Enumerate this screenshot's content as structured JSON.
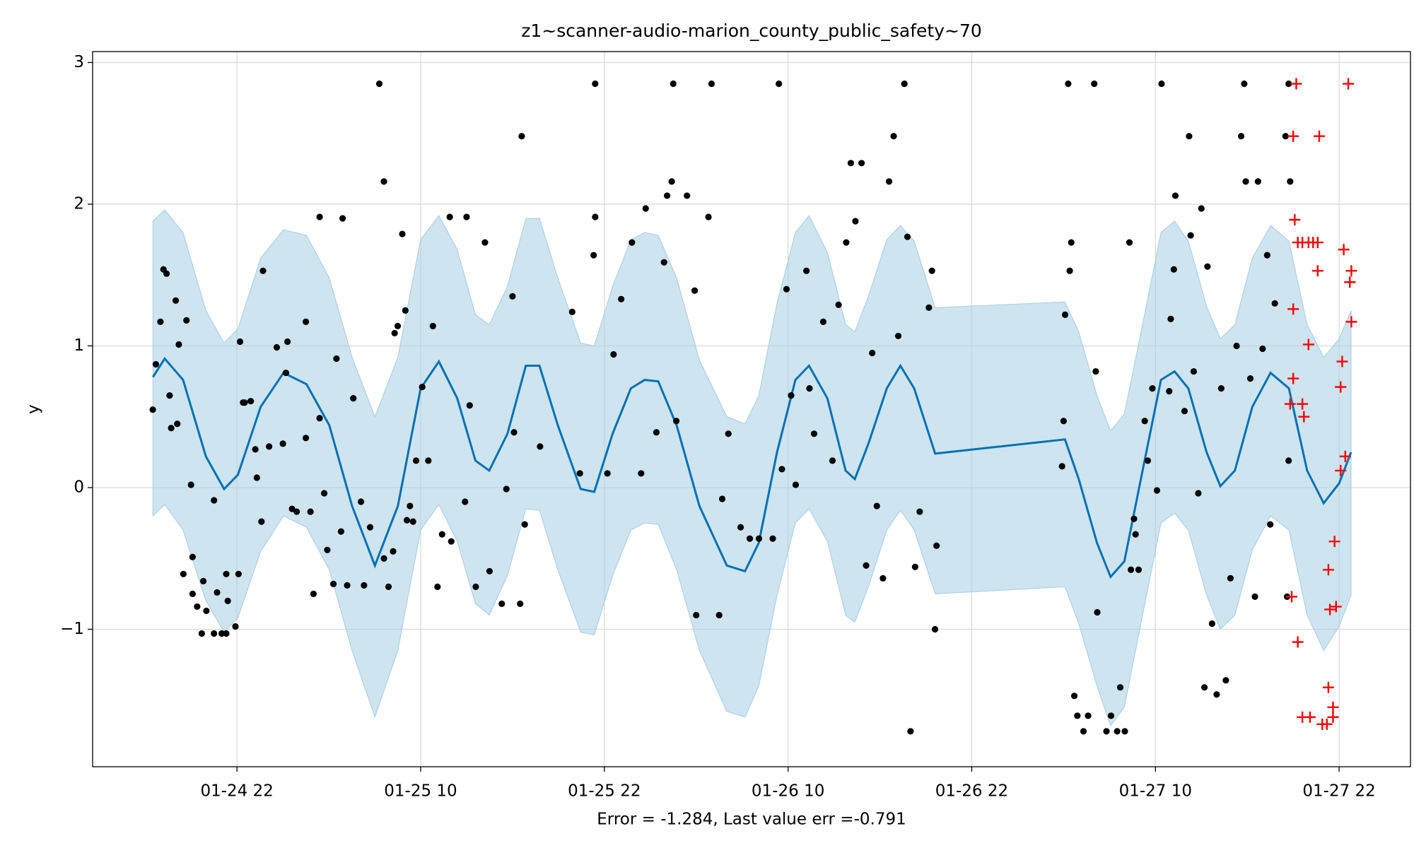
{
  "chart_data": {
    "type": "forecast",
    "title": "z1~scanner-audio-marion_county_public_safety~70",
    "xlabel": "Error = -1.284, Last value err =-0.791",
    "ylabel": "y",
    "xlim": [
      12.57,
      98.66
    ],
    "ylim": [
      -1.97,
      3.077
    ],
    "xticks": [
      {
        "value": 22,
        "label": "01-24 22"
      },
      {
        "value": 34,
        "label": "01-25 10"
      },
      {
        "value": 46,
        "label": "01-25 22"
      },
      {
        "value": 58,
        "label": "01-26 10"
      },
      {
        "value": 70,
        "label": "01-26 22"
      },
      {
        "value": 82,
        "label": "01-27 10"
      },
      {
        "value": 94,
        "label": "01-27 22"
      }
    ],
    "yticks": [
      {
        "value": -1,
        "label": "−1"
      },
      0,
      1,
      2,
      3
    ],
    "grid": true,
    "series": [
      {
        "kind": "line",
        "color": "#0072b2",
        "band_color": "#a6cde2",
        "x": [
          16.51,
          17.28,
          18.48,
          19.97,
          21.16,
          22.06,
          23.55,
          25.04,
          26.54,
          28.03,
          29.52,
          31.01,
          32.51,
          34.0,
          35.19,
          36.39,
          37.58,
          38.48,
          39.67,
          40.87,
          41.76,
          42.96,
          44.45,
          45.34,
          46.54,
          47.73,
          48.63,
          49.52,
          50.72,
          52.21,
          54.0,
          55.19,
          56.09,
          57.28,
          58.48,
          59.37,
          60.57,
          61.76,
          62.36,
          63.25,
          64.45,
          65.34,
          66.24,
          67.61,
          76.09,
          76.99,
          78.18,
          79.07,
          79.97,
          81.16,
          82.36,
          83.25,
          84.15,
          85.34,
          86.24,
          87.19,
          88.33,
          89.52,
          90.72,
          91.91,
          92.99,
          94.0,
          94.78
        ],
        "values": [
          0.78,
          0.91,
          0.76,
          0.22,
          -0.01,
          0.09,
          0.57,
          0.81,
          0.73,
          0.44,
          -0.13,
          -0.55,
          -0.13,
          0.7,
          0.89,
          0.63,
          0.19,
          0.12,
          0.38,
          0.86,
          0.86,
          0.44,
          -0.01,
          -0.03,
          0.38,
          0.7,
          0.76,
          0.75,
          0.44,
          -0.13,
          -0.55,
          -0.59,
          -0.39,
          0.25,
          0.76,
          0.86,
          0.63,
          0.12,
          0.06,
          0.31,
          0.7,
          0.86,
          0.7,
          0.24,
          0.34,
          0.06,
          -0.39,
          -0.63,
          -0.52,
          0.12,
          0.76,
          0.82,
          0.7,
          0.25,
          0.01,
          0.12,
          0.57,
          0.81,
          0.7,
          0.12,
          -0.11,
          0.03,
          0.25
        ],
        "upper": [
          1.88,
          1.96,
          1.8,
          1.25,
          1.02,
          1.12,
          1.62,
          1.82,
          1.78,
          1.48,
          0.92,
          0.5,
          0.92,
          1.75,
          1.92,
          1.68,
          1.22,
          1.15,
          1.42,
          1.9,
          1.9,
          1.48,
          1.02,
          1.0,
          1.42,
          1.75,
          1.8,
          1.78,
          1.48,
          0.9,
          0.5,
          0.45,
          0.65,
          1.3,
          1.8,
          1.92,
          1.66,
          1.15,
          1.1,
          1.35,
          1.75,
          1.85,
          1.74,
          1.27,
          1.31,
          1.1,
          0.65,
          0.4,
          0.52,
          1.15,
          1.8,
          1.88,
          1.74,
          1.28,
          1.05,
          1.15,
          1.62,
          1.85,
          1.74,
          1.15,
          0.92,
          1.05,
          1.25
        ],
        "lower": [
          -0.2,
          -0.12,
          -0.3,
          -0.8,
          -1.02,
          -0.92,
          -0.45,
          -0.2,
          -0.28,
          -0.58,
          -1.15,
          -1.62,
          -1.15,
          -0.3,
          -0.12,
          -0.38,
          -0.82,
          -0.9,
          -0.62,
          -0.15,
          -0.16,
          -0.58,
          -1.02,
          -1.04,
          -0.62,
          -0.3,
          -0.25,
          -0.26,
          -0.58,
          -1.15,
          -1.58,
          -1.62,
          -1.4,
          -0.76,
          -0.25,
          -0.15,
          -0.38,
          -0.9,
          -0.95,
          -0.7,
          -0.3,
          -0.16,
          -0.3,
          -0.75,
          -0.7,
          -0.96,
          -1.4,
          -1.68,
          -1.55,
          -0.9,
          -0.25,
          -0.18,
          -0.3,
          -0.76,
          -1.0,
          -0.9,
          -0.44,
          -0.2,
          -0.3,
          -0.9,
          -1.15,
          -0.98,
          -0.76
        ]
      },
      {
        "kind": "scatter",
        "marker": "dot",
        "color": "#000000",
        "x": [
          16.5,
          16.7,
          17.0,
          17.2,
          17.4,
          17.6,
          17.7,
          18.0,
          18.1,
          18.2,
          18.5,
          18.7,
          19.0,
          19.1,
          19.1,
          19.4,
          19.7,
          19.8,
          20.0,
          20.5,
          20.5,
          20.7,
          21.0,
          21.3,
          21.3,
          21.4,
          21.9,
          22.1,
          22.2,
          22.4,
          22.5,
          22.9,
          23.2,
          23.3,
          23.6,
          23.7,
          24.1,
          24.6,
          25.0,
          25.2,
          25.3,
          25.6,
          25.9,
          26.5,
          26.5,
          26.8,
          27.0,
          27.4,
          27.4,
          27.7,
          27.9,
          28.3,
          28.5,
          28.8,
          28.9,
          29.2,
          29.6,
          30.1,
          30.3,
          30.7,
          31.3,
          31.6,
          31.6,
          31.9,
          32.2,
          32.3,
          32.5,
          32.8,
          33.0,
          33.1,
          33.3,
          33.5,
          33.7,
          34.1,
          34.5,
          34.8,
          35.1,
          35.4,
          35.9,
          36.0,
          36.9,
          37.0,
          37.2,
          37.6,
          38.2,
          38.5,
          39.3,
          39.6,
          40.0,
          40.1,
          40.5,
          40.6,
          40.8,
          41.8,
          43.9,
          44.4,
          45.4,
          45.4,
          45.3,
          46.2,
          46.6,
          47.1,
          47.8,
          48.4,
          48.7,
          49.4,
          49.9,
          50.1,
          50.4,
          50.5,
          50.7,
          51.4,
          51.9,
          52.0,
          52.8,
          53.0,
          53.5,
          53.7,
          54.1,
          54.9,
          55.5,
          56.1,
          57.0,
          57.4,
          57.6,
          57.9,
          58.2,
          58.5,
          59.2,
          59.4,
          59.7,
          60.3,
          60.9,
          61.3,
          61.8,
          62.1,
          62.4,
          62.8,
          63.1,
          63.5,
          63.8,
          64.2,
          64.6,
          64.9,
          65.2,
          65.6,
          65.8,
          66.0,
          66.3,
          66.6,
          67.2,
          67.4,
          67.7,
          67.6,
          75.9,
          76.0,
          76.1,
          76.3,
          76.4,
          76.5,
          76.7,
          76.9,
          77.3,
          77.6,
          78.0,
          78.1,
          78.2,
          78.8,
          79.1,
          79.5,
          79.7,
          80.0,
          80.3,
          80.4,
          80.6,
          80.7,
          80.9,
          81.3,
          81.5,
          81.8,
          82.1,
          82.4,
          82.9,
          83.0,
          83.2,
          83.3,
          83.9,
          84.2,
          84.3,
          84.5,
          84.8,
          85.0,
          85.2,
          85.4,
          85.7,
          86.0,
          86.3,
          86.6,
          86.9,
          87.3,
          87.6,
          87.8,
          87.9,
          88.2,
          88.5,
          88.7,
          89.0,
          89.3,
          89.5,
          89.8,
          90.5,
          90.7,
          90.7,
          90.8,
          90.6
        ],
        "values": [
          0.55,
          0.87,
          1.17,
          1.54,
          1.51,
          0.65,
          0.42,
          1.32,
          0.45,
          1.01,
          -0.61,
          1.18,
          0.02,
          -0.49,
          -0.75,
          -0.84,
          -1.03,
          -0.66,
          -0.87,
          -0.09,
          -1.03,
          -0.74,
          -1.03,
          -1.03,
          -0.61,
          -0.8,
          -0.98,
          -0.61,
          1.03,
          0.6,
          0.6,
          0.61,
          0.27,
          0.07,
          -0.24,
          1.53,
          0.29,
          0.99,
          0.31,
          0.81,
          1.03,
          -0.15,
          -0.17,
          1.17,
          0.35,
          -0.17,
          -0.75,
          1.91,
          0.49,
          -0.04,
          -0.44,
          -0.68,
          0.91,
          -0.31,
          1.9,
          -0.69,
          0.63,
          -0.1,
          -0.69,
          -0.28,
          2.85,
          2.16,
          -0.5,
          -0.7,
          -0.45,
          1.09,
          1.14,
          1.79,
          1.25,
          -0.23,
          -0.13,
          -0.24,
          0.19,
          0.71,
          0.19,
          1.14,
          -0.7,
          -0.33,
          1.91,
          -0.38,
          -0.1,
          1.91,
          0.58,
          -0.7,
          1.73,
          -0.59,
          -0.82,
          -0.01,
          1.35,
          0.39,
          -0.82,
          2.48,
          -0.26,
          0.29,
          1.24,
          0.1,
          2.85,
          1.91,
          1.64,
          0.1,
          0.94,
          1.33,
          1.73,
          0.1,
          1.97,
          0.39,
          1.59,
          2.06,
          2.16,
          2.85,
          0.47,
          2.06,
          1.39,
          -0.9,
          1.91,
          2.85,
          -0.9,
          -0.08,
          0.38,
          -0.28,
          -0.36,
          -0.36,
          -0.36,
          2.85,
          0.13,
          1.4,
          0.65,
          0.02,
          1.53,
          0.7,
          0.38,
          1.17,
          0.19,
          1.29,
          1.73,
          2.29,
          1.88,
          2.29,
          -0.55,
          0.95,
          -0.13,
          -0.64,
          2.16,
          2.48,
          1.07,
          2.85,
          1.77,
          -1.72,
          -0.56,
          -0.17,
          1.27,
          1.53,
          -0.41,
          -1.0,
          0.15,
          0.47,
          1.22,
          2.85,
          1.53,
          1.73,
          -1.47,
          -1.61,
          -1.72,
          -1.61,
          2.85,
          0.82,
          -0.88,
          -1.72,
          -1.61,
          -1.72,
          -1.41,
          -1.72,
          1.73,
          -0.58,
          -0.22,
          -0.33,
          -0.58,
          0.47,
          0.19,
          0.7,
          -0.02,
          2.85,
          0.68,
          1.19,
          1.54,
          2.06,
          0.54,
          2.48,
          1.78,
          0.82,
          -0.04,
          1.97,
          -1.41,
          1.56,
          -0.96,
          -1.46,
          0.7,
          -1.36,
          -0.64,
          1.0,
          2.48,
          2.85,
          2.16,
          0.77,
          -0.77,
          2.16,
          0.98,
          1.64,
          -0.26,
          1.3,
          2.48,
          2.85,
          0.19,
          2.16,
          -0.77
        ]
      },
      {
        "kind": "scatter",
        "marker": "plus",
        "color": "#ff0000",
        "x": [
          91.2,
          91.0,
          91.1,
          91.3,
          91.6,
          92.0,
          92.3,
          92.6,
          92.7,
          92.6,
          91.0,
          92.0,
          91.0,
          90.8,
          91.6,
          91.7,
          90.9,
          91.3,
          91.6,
          92.1,
          92.9,
          93.2,
          93.6,
          93.3,
          93.6,
          93.3,
          93.7,
          93.4,
          93.8,
          94.1,
          94.4,
          94.1,
          94.2,
          94.8,
          94.7,
          94.8,
          94.3,
          94.6
        ],
        "values": [
          2.85,
          2.48,
          1.89,
          1.73,
          1.73,
          1.73,
          1.73,
          1.73,
          2.48,
          1.53,
          1.26,
          1.01,
          0.77,
          0.59,
          0.59,
          0.5,
          -0.77,
          -1.09,
          -1.62,
          -1.62,
          -1.67,
          -1.67,
          -1.62,
          -1.41,
          -1.55,
          -0.58,
          -0.38,
          -0.86,
          -0.84,
          0.12,
          0.22,
          0.71,
          0.89,
          1.17,
          1.45,
          1.53,
          1.68,
          2.85
        ]
      }
    ]
  }
}
